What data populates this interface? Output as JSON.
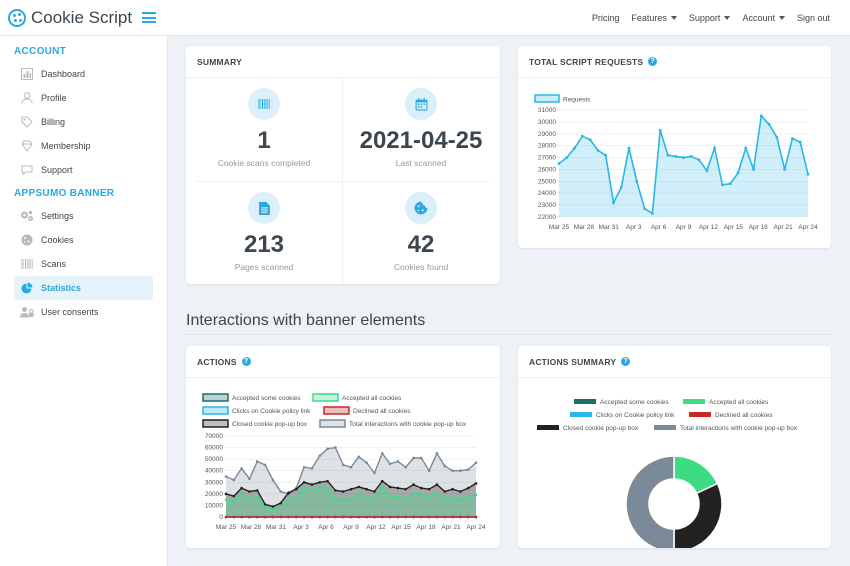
{
  "brand": {
    "name": "Cookie Script"
  },
  "topnav": {
    "items": [
      {
        "label": "Pricing",
        "dropdown": false
      },
      {
        "label": "Features",
        "dropdown": true
      },
      {
        "label": "Support",
        "dropdown": true
      },
      {
        "label": "Account",
        "dropdown": true
      },
      {
        "label": "Sign out",
        "dropdown": false
      }
    ]
  },
  "sidebar": {
    "account_heading": "ACCOUNT",
    "account_items": [
      {
        "label": "Dashboard",
        "icon": "dashboard-icon"
      },
      {
        "label": "Profile",
        "icon": "user-icon"
      },
      {
        "label": "Billing",
        "icon": "tag-icon"
      },
      {
        "label": "Membership",
        "icon": "diamond-icon"
      },
      {
        "label": "Support",
        "icon": "chat-icon"
      }
    ],
    "banner_heading": "APPSUMO BANNER",
    "banner_items": [
      {
        "label": "Settings",
        "icon": "gears-icon",
        "active": false
      },
      {
        "label": "Cookies",
        "icon": "cookie-icon",
        "active": false
      },
      {
        "label": "Scans",
        "icon": "barcode-icon",
        "active": false
      },
      {
        "label": "Statistics",
        "icon": "pie-chart-icon",
        "active": true
      },
      {
        "label": "User consents",
        "icon": "users-icon",
        "active": false
      }
    ]
  },
  "summary": {
    "title": "SUMMARY",
    "cells": [
      {
        "value": "1",
        "label": "Cookie scans completed",
        "icon": "barcode-icon"
      },
      {
        "value": "2021-04-25",
        "label": "Last scanned",
        "icon": "calendar-icon"
      },
      {
        "value": "213",
        "label": "Pages scanned",
        "icon": "document-icon"
      },
      {
        "value": "42",
        "label": "Cookies found",
        "icon": "cookie-icon"
      }
    ]
  },
  "section": {
    "title": "Interactions with banner elements"
  },
  "colors": {
    "accent": "#29a9e0",
    "accepted_some": "#1a6e6a",
    "accepted_all": "#3ddc84",
    "clicks_policy": "#29b6e8",
    "declined_all": "#c62828",
    "closed_popup": "#222222",
    "total": "#7a8a99"
  },
  "requests_chart": {
    "title": "TOTAL SCRIPT REQUESTS",
    "chart_data": {
      "type": "area",
      "legend": [
        "Requests"
      ],
      "legend_placement": "top-left",
      "x_ticks": [
        "Mar 25",
        "Mar 28",
        "Mar 31",
        "Apr 3",
        "Apr 6",
        "Apr 9",
        "Apr 12",
        "Apr 15",
        "Apr 18",
        "Apr 21",
        "Apr 24"
      ],
      "y_ticks": [
        "31000",
        "30000",
        "29000",
        "28000",
        "27000",
        "26000",
        "25000",
        "24000",
        "23000",
        "22000"
      ],
      "ylim": [
        22000,
        31000
      ],
      "series": [
        {
          "name": "Requests",
          "values": [
            26500,
            27000,
            27800,
            28800,
            28500,
            27600,
            27200,
            23200,
            24500,
            27800,
            25000,
            22700,
            22300,
            29300,
            27200,
            27100,
            27000,
            27100,
            26800,
            25900,
            27800,
            24700,
            24800,
            25700,
            27800,
            26000,
            30500,
            29800,
            28700,
            26000,
            28600,
            28300,
            25600
          ]
        }
      ]
    }
  },
  "actions_chart": {
    "title": "ACTIONS",
    "chart_data": {
      "type": "line",
      "legend": [
        "Accepted some cookies",
        "Accepted all cookies",
        "Clicks on Cookie policy link",
        "Declined all cookies",
        "Closed cookie pop-up box",
        "Total interactions with cookie pop-up box"
      ],
      "legend_placement": "top",
      "x_ticks": [
        "Mar 25",
        "Mar 28",
        "Mar 31",
        "Apr 3",
        "Apr 6",
        "Apr 9",
        "Apr 12",
        "Apr 15",
        "Apr 18",
        "Apr 21",
        "Apr 24"
      ],
      "y_ticks": [
        "70000",
        "60000",
        "50000",
        "40000",
        "30000",
        "20000",
        "10000",
        "0"
      ],
      "ylim": [
        0,
        70000
      ],
      "series": [
        {
          "name": "Accepted some cookies",
          "values": [
            0,
            0,
            0,
            0,
            0,
            0,
            0,
            0,
            0,
            0,
            0,
            0,
            0,
            0,
            0,
            0,
            0,
            0,
            0,
            0,
            0,
            0,
            0,
            0,
            0,
            0,
            0,
            0,
            0,
            0,
            0,
            0,
            0
          ]
        },
        {
          "name": "Accepted all cookies",
          "values": [
            15000,
            14000,
            20000,
            16000,
            17000,
            8000,
            7000,
            9000,
            16000,
            17000,
            26000,
            23000,
            26000,
            25000,
            16000,
            15000,
            16000,
            20000,
            16000,
            16000,
            26000,
            18000,
            17000,
            16000,
            20000,
            19000,
            18000,
            20000,
            16000,
            17000,
            15000,
            18000,
            19000
          ]
        },
        {
          "name": "Clicks on Cookie policy link",
          "values": [
            0,
            0,
            0,
            0,
            0,
            0,
            0,
            0,
            0,
            0,
            0,
            0,
            0,
            0,
            0,
            0,
            0,
            0,
            0,
            0,
            0,
            0,
            0,
            0,
            0,
            0,
            0,
            0,
            0,
            0,
            0,
            0,
            0
          ]
        },
        {
          "name": "Declined all cookies",
          "values": [
            0,
            0,
            0,
            0,
            0,
            0,
            0,
            0,
            0,
            0,
            0,
            0,
            0,
            0,
            0,
            0,
            0,
            0,
            0,
            0,
            0,
            0,
            0,
            0,
            0,
            0,
            0,
            0,
            0,
            0,
            0,
            0,
            0
          ]
        },
        {
          "name": "Closed cookie pop-up box",
          "values": [
            20000,
            18000,
            25000,
            22000,
            23000,
            11000,
            9000,
            12000,
            21000,
            24000,
            30000,
            28000,
            30000,
            31000,
            23000,
            22000,
            24000,
            26000,
            24000,
            22000,
            31000,
            26000,
            25000,
            24000,
            28000,
            25000,
            24000,
            28000,
            22000,
            24000,
            22000,
            25000,
            29000
          ]
        },
        {
          "name": "Total interactions with cookie pop-up box",
          "values": [
            35000,
            32000,
            42000,
            33000,
            48000,
            45000,
            32000,
            22000,
            20000,
            25000,
            43000,
            42000,
            53000,
            59000,
            60000,
            45000,
            43000,
            52000,
            47000,
            38000,
            55000,
            46000,
            48000,
            43000,
            51000,
            51000,
            40000,
            55000,
            44000,
            40000,
            40000,
            41000,
            47000
          ]
        }
      ]
    }
  },
  "summary_chart": {
    "title": "ACTIONS SUMMARY",
    "chart_data": {
      "type": "pie",
      "donut": true,
      "legend": [
        "Accepted some cookies",
        "Accepted all cookies",
        "Clicks on Cookie policy link",
        "Declined all cookies",
        "Closed cookie pop-up box",
        "Total interactions with cookie pop-up box"
      ],
      "legend_placement": "top",
      "slices": [
        {
          "name": "Accepted all cookies",
          "value": 18
        },
        {
          "name": "Closed cookie pop-up box",
          "value": 32
        },
        {
          "name": "Total interactions with cookie pop-up box",
          "value": 50
        }
      ]
    }
  }
}
